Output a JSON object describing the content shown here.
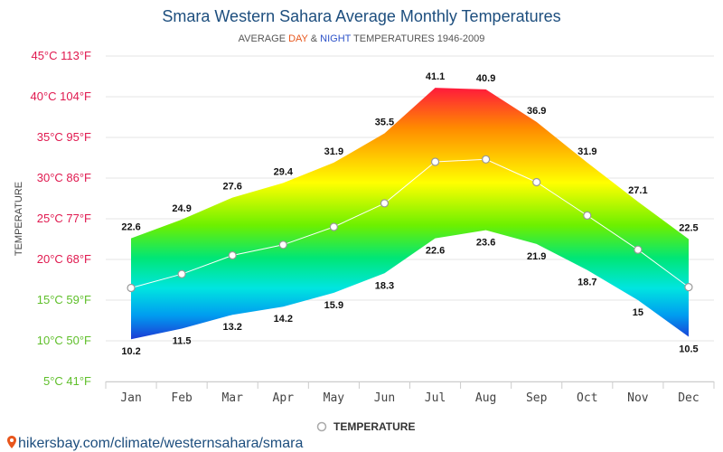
{
  "header": {
    "title": "Smara Western Sahara Average Monthly Temperatures",
    "subtitle_prefix": "AVERAGE ",
    "subtitle_day": "DAY",
    "subtitle_amp": " & ",
    "subtitle_night": "NIGHT",
    "subtitle_suffix": " TEMPERATURES 1946-2009",
    "day_color": "#e8561c",
    "night_color": "#2c52c9"
  },
  "chart_data": {
    "type": "area",
    "title": "Smara Western Sahara Average Monthly Temperatures",
    "subtitle": "AVERAGE DAY & NIGHT TEMPERATURES 1946-2009",
    "ylabel": "TEMPERATURE",
    "xlabel": "",
    "categories": [
      "Jan",
      "Feb",
      "Mar",
      "Apr",
      "May",
      "Jun",
      "Jul",
      "Aug",
      "Sep",
      "Oct",
      "Nov",
      "Dec"
    ],
    "day": [
      22.6,
      24.9,
      27.6,
      29.4,
      31.9,
      35.5,
      41.1,
      40.9,
      36.9,
      31.9,
      27.1,
      22.5
    ],
    "night": [
      10.2,
      11.5,
      13.2,
      14.2,
      15.9,
      18.3,
      22.6,
      23.6,
      21.9,
      18.7,
      15,
      10.5
    ],
    "series": [
      {
        "name": "TEMPERATURE",
        "values": [
          16.5,
          18.2,
          20.5,
          21.8,
          24,
          26.9,
          32,
          32.3,
          29.5,
          25.4,
          21.2,
          16.6
        ]
      }
    ],
    "ylim": [
      5,
      45
    ],
    "yticks": [
      {
        "value": 45,
        "label": "45°C 113°F",
        "color": "#e0194f"
      },
      {
        "value": 40,
        "label": "40°C 104°F",
        "color": "#e0194f"
      },
      {
        "value": 35,
        "label": "35°C 95°F",
        "color": "#e0194f"
      },
      {
        "value": 30,
        "label": "30°C 86°F",
        "color": "#e0194f"
      },
      {
        "value": 25,
        "label": "25°C 77°F",
        "color": "#e0194f"
      },
      {
        "value": 20,
        "label": "20°C 68°F",
        "color": "#e0194f"
      },
      {
        "value": 15,
        "label": "15°C 59°F",
        "color": "#5fbf2a"
      },
      {
        "value": 10,
        "label": "10°C 50°F",
        "color": "#5fbf2a"
      },
      {
        "value": 5,
        "label": "5°C 41°F",
        "color": "#5fbf2a"
      }
    ],
    "grid": true,
    "legend_position": "bottom-center"
  },
  "legend": {
    "label": "TEMPERATURE"
  },
  "footer": {
    "url": "hikersbay.com/climate/westernsahara/smara",
    "icon": "map-pin-icon",
    "icon_color": "#e8561c"
  }
}
